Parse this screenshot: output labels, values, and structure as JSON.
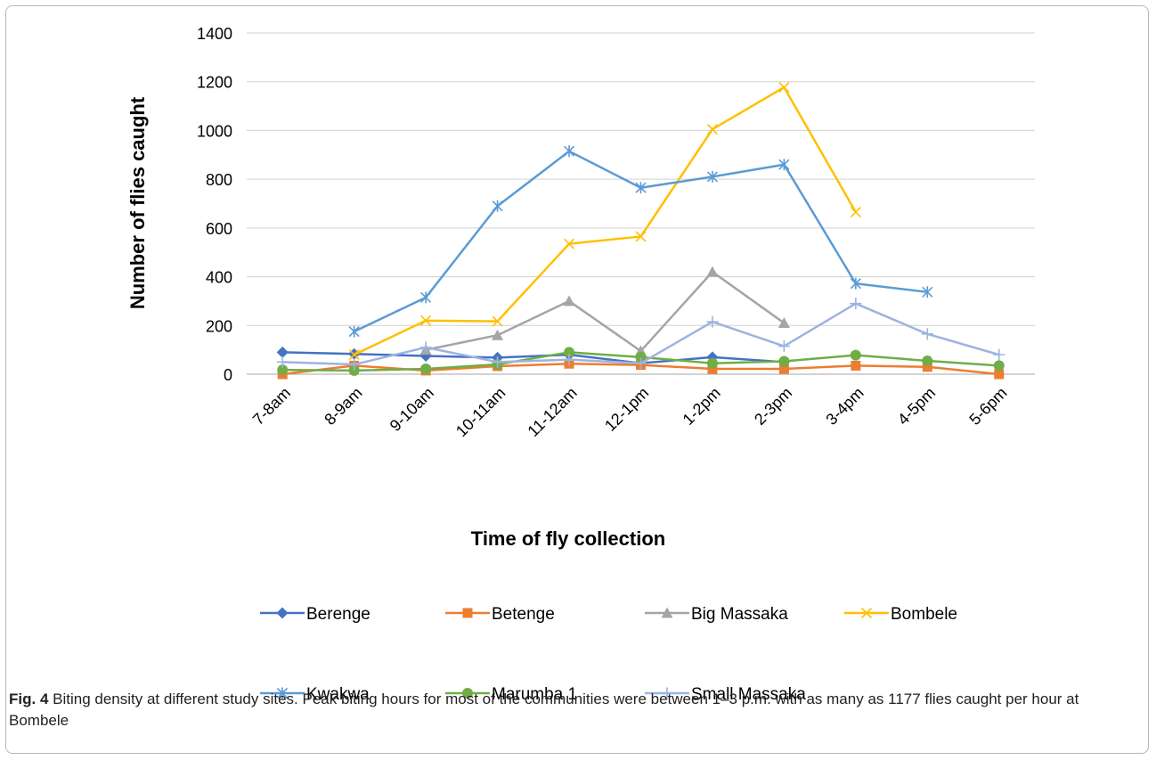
{
  "chart_data": {
    "type": "line",
    "title": "",
    "xlabel": "Time of fly collection",
    "ylabel": "Number of flies caught",
    "ylim": [
      0,
      1400
    ],
    "yticks": [
      0,
      200,
      400,
      600,
      800,
      1000,
      1200,
      1400
    ],
    "categories": [
      "7-8am",
      "8-9am",
      "9-10am",
      "10-11am",
      "11-12am",
      "12-1pm",
      "1-2pm",
      "2-3pm",
      "3-4pm",
      "4-5pm",
      "5-6pm"
    ],
    "grid": "horizontal",
    "legend_position": "bottom",
    "series": [
      {
        "name": "Berenge",
        "color": "#4472C4",
        "marker": "diamond",
        "values": [
          90,
          83,
          75,
          68,
          80,
          45,
          70,
          50,
          null,
          null,
          null
        ]
      },
      {
        "name": "Betenge",
        "color": "#ED7D31",
        "marker": "square",
        "values": [
          0,
          35,
          15,
          33,
          43,
          38,
          22,
          22,
          35,
          30,
          0
        ]
      },
      {
        "name": "Big Massaka",
        "color": "#A5A5A5",
        "marker": "triangle",
        "values": [
          null,
          null,
          100,
          160,
          300,
          95,
          420,
          210,
          null,
          null,
          null
        ]
      },
      {
        "name": "Bombele",
        "color": "#FFC000",
        "marker": "x",
        "values": [
          null,
          80,
          220,
          217,
          535,
          565,
          1005,
          1177,
          665,
          null,
          null
        ]
      },
      {
        "name": "Kwakwa",
        "color": "#5B9BD5",
        "marker": "asterisk",
        "values": [
          null,
          175,
          315,
          690,
          915,
          765,
          810,
          860,
          372,
          337,
          null
        ]
      },
      {
        "name": "Marumba 1",
        "color": "#70AD47",
        "marker": "circle",
        "values": [
          18,
          15,
          22,
          40,
          90,
          70,
          45,
          53,
          78,
          55,
          35
        ]
      },
      {
        "name": "Small Massaka",
        "color": "#9DB3E2",
        "marker": "plus",
        "values": [
          50,
          40,
          110,
          50,
          60,
          45,
          215,
          115,
          290,
          165,
          80
        ]
      }
    ]
  },
  "caption": {
    "label": "Fig. 4",
    "text": "Biting density at different study sites. Peak biting hours for most of the communities were between 1–3 p.m. with as many as 1177 flies caught per hour at Bombele"
  }
}
